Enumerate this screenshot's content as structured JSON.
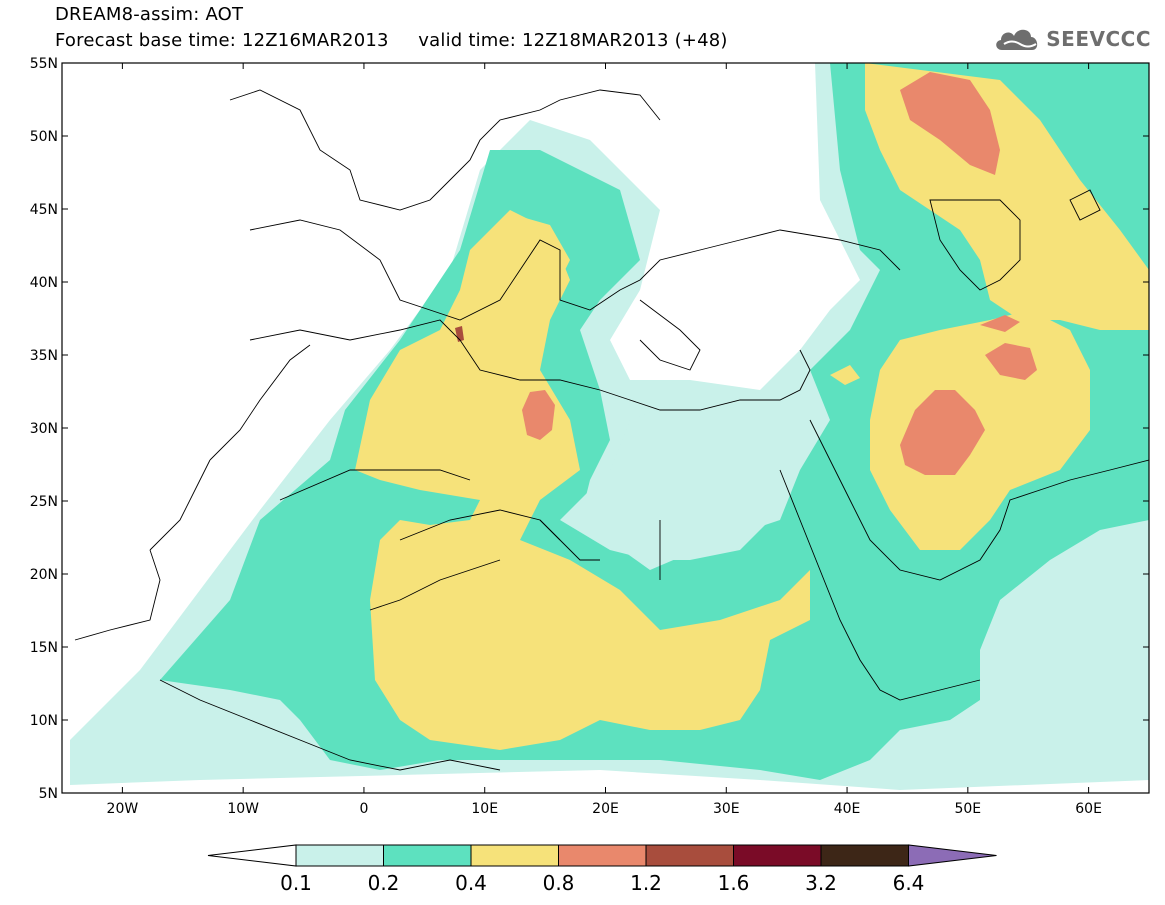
{
  "title": {
    "line1": "DREAM8-assim: AOT",
    "base_time": "Forecast base time: 12Z16MAR2013",
    "valid_time": "valid time: 12Z18MAR2013 (+48)"
  },
  "logo": {
    "text": "SEEVCCC",
    "icon": "cloud-icon"
  },
  "map": {
    "projection": "lat-lon",
    "lon_range": [
      -25,
      65
    ],
    "lat_range": [
      5,
      55
    ],
    "lat_labels": [
      "55N",
      "50N",
      "45N",
      "40N",
      "35N",
      "30N",
      "25N",
      "20N",
      "15N",
      "10N",
      "5N"
    ],
    "lat_values": [
      55,
      50,
      45,
      40,
      35,
      30,
      25,
      20,
      15,
      10,
      5
    ],
    "lon_labels": [
      "20W",
      "10W",
      "0",
      "10E",
      "20E",
      "30E",
      "40E",
      "50E",
      "60E"
    ],
    "lon_values": [
      -20,
      -10,
      0,
      10,
      20,
      30,
      40,
      50,
      60
    ]
  },
  "colorbar": {
    "labels": [
      "0.1",
      "0.2",
      "0.4",
      "0.8",
      "1.2",
      "1.6",
      "3.2",
      "6.4"
    ],
    "colors": [
      "#ffffff",
      "#c9f1ea",
      "#5de1bf",
      "#f6e27a",
      "#e9886c",
      "#a84d3d",
      "#7a0b27",
      "#3d2617",
      "#8c6cb6"
    ]
  }
}
